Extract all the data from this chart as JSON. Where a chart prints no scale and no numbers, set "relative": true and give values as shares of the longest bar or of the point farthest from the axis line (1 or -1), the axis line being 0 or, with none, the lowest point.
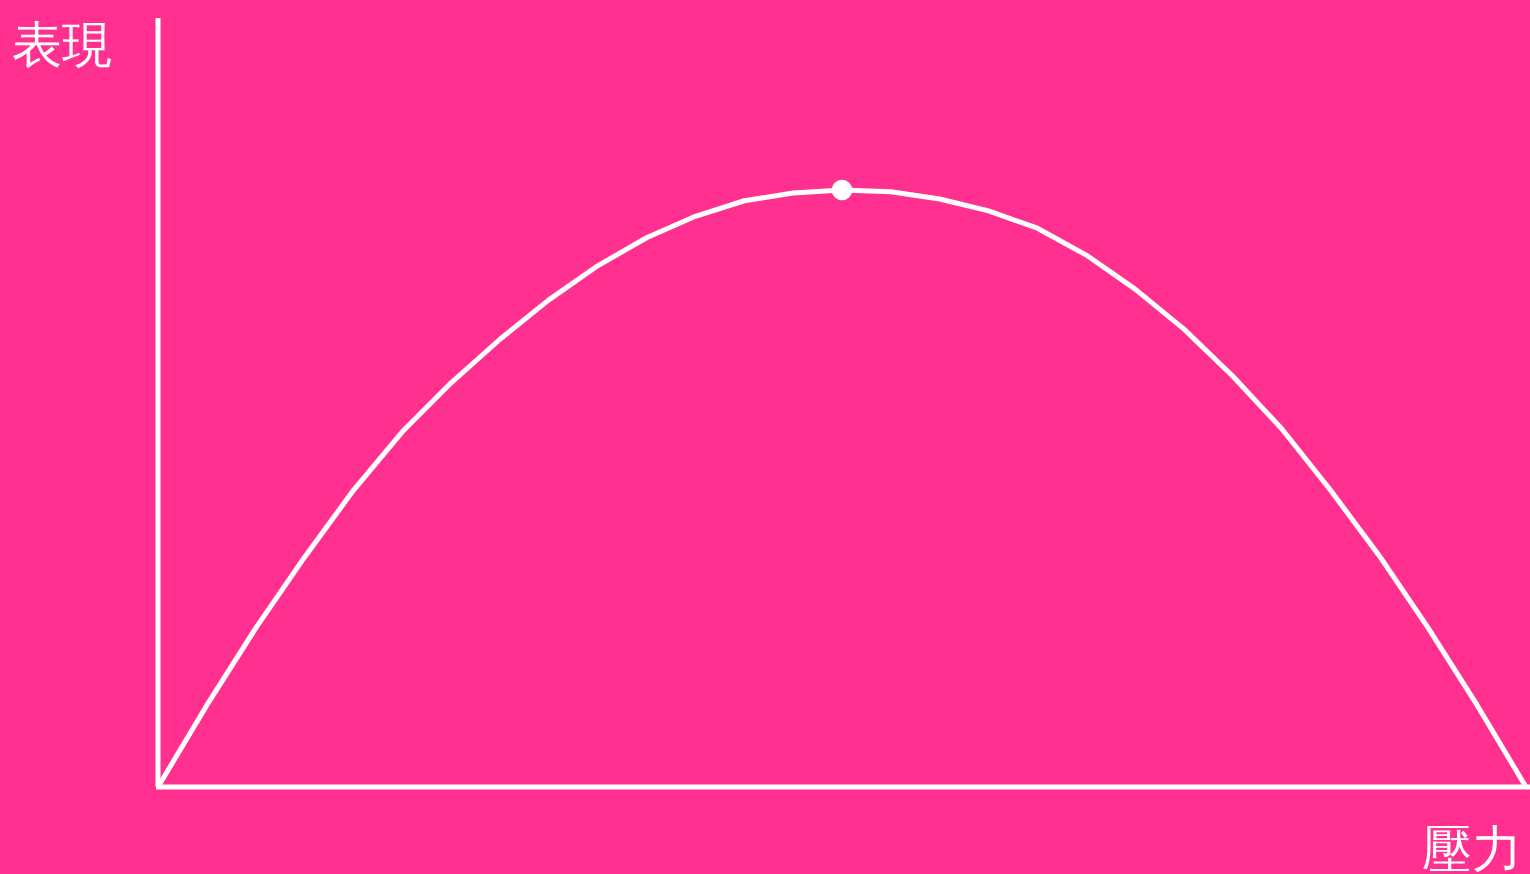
{
  "chart_data": {
    "type": "line",
    "relative": true,
    "xlabel": "壓力",
    "ylabel": "表現",
    "categories": [
      null,
      null,
      null,
      null,
      null,
      null,
      null,
      null,
      null,
      null,
      null,
      null,
      null,
      null,
      null,
      null,
      null,
      null,
      null,
      null,
      null,
      null,
      null,
      null,
      null,
      null,
      null,
      null,
      null
    ],
    "series": [
      {
        "color": "#ffffff",
        "marker": "none",
        "values": [
          0,
          0.137,
          0.266,
          0.385,
          0.497,
          0.595,
          0.677,
          0.75,
          0.816,
          0.873,
          0.92,
          0.956,
          0.982,
          0.995,
          1,
          0.997,
          0.985,
          0.965,
          0.936,
          0.891,
          0.834,
          0.767,
          0.688,
          0.6,
          0.497,
          0.387,
          0.266,
          0.137,
          0
        ]
      },
      {
        "color": "#ffffff",
        "marker": "circle",
        "values": [
          null,
          null,
          null,
          null,
          null,
          null,
          null,
          null,
          null,
          null,
          null,
          null,
          null,
          null,
          1,
          null,
          null,
          null,
          null,
          null,
          null,
          null,
          null,
          null,
          null,
          null,
          null,
          null,
          null
        ]
      }
    ]
  }
}
